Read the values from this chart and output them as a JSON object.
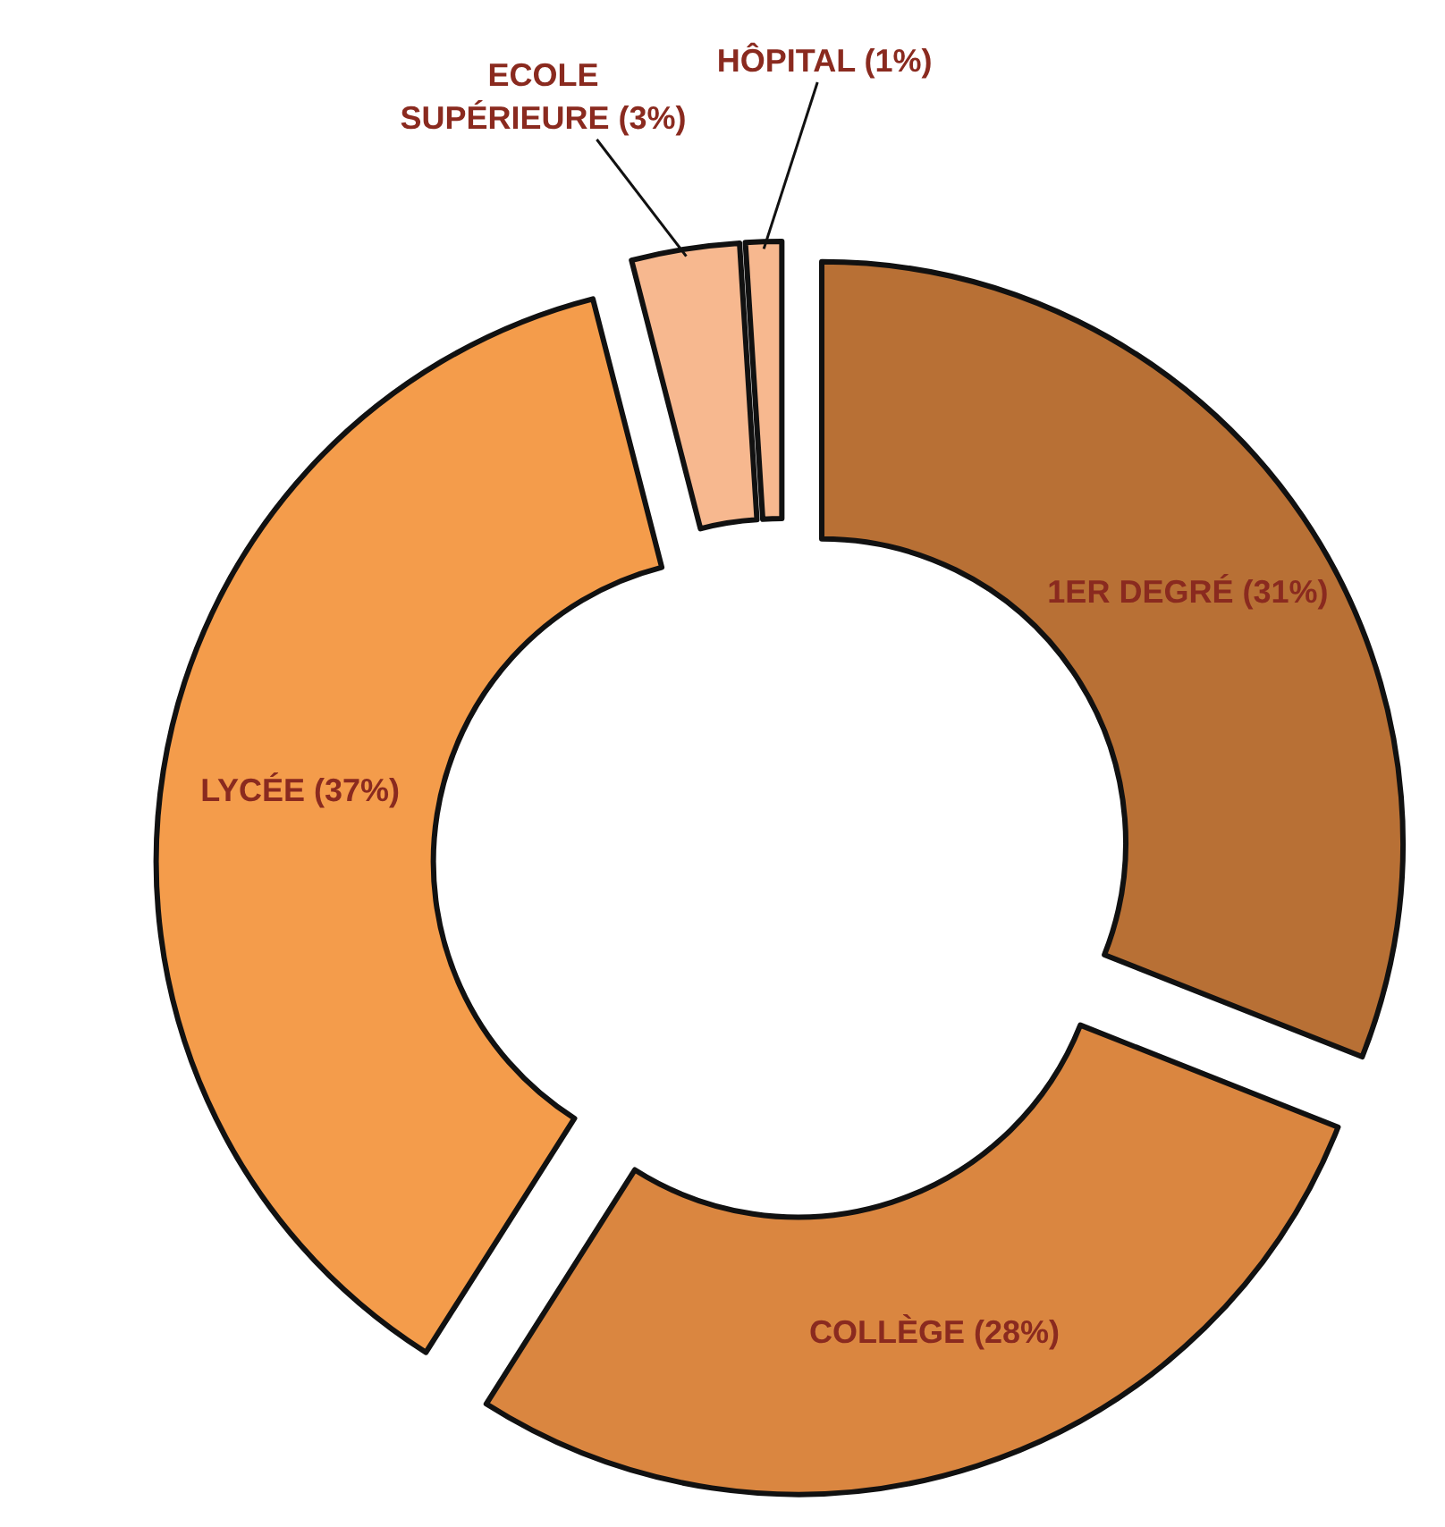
{
  "chart_data": {
    "type": "donut",
    "categories": [
      "1ER DEGRÉ",
      "COLLÈGE",
      "LYCÉE",
      "ECOLE SUPÉRIEURE",
      "HÔPITAL"
    ],
    "values": [
      31,
      28,
      37,
      3,
      1
    ],
    "value_labels": [
      "(31%)",
      "(28%)",
      "(37%)",
      "(3%)",
      "(1%)"
    ],
    "colors": [
      "#b87035",
      "#da8640",
      "#f49c4b",
      "#f7b88f",
      "#f7b88f"
    ]
  }
}
